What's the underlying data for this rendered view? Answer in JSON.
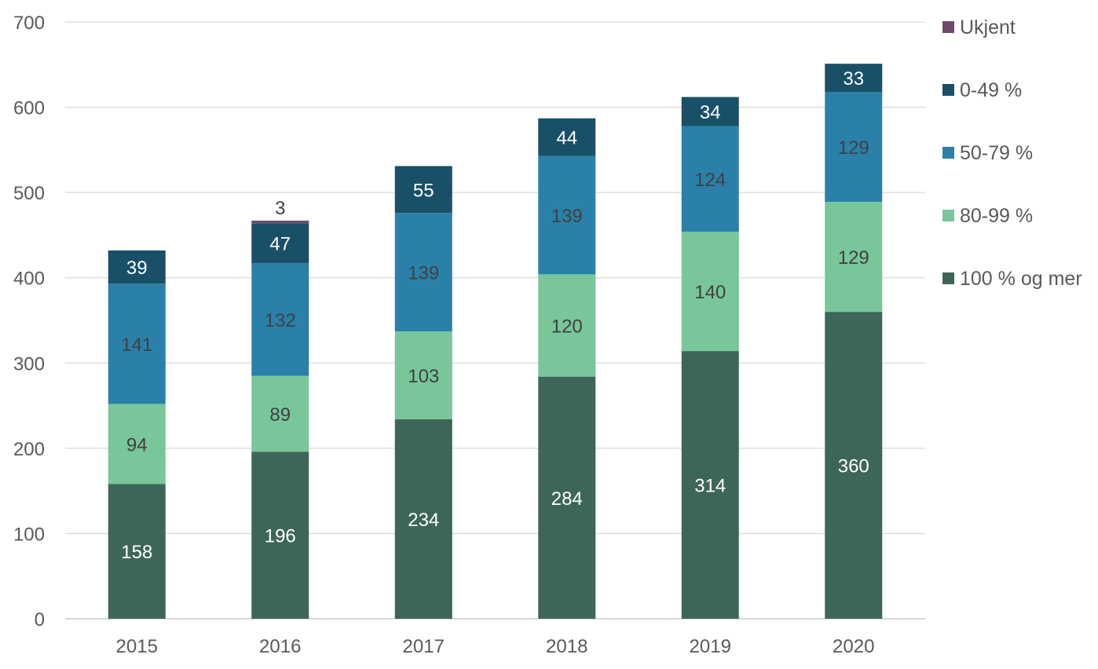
{
  "chart_data": {
    "type": "bar",
    "stacked": true,
    "categories": [
      "2015",
      "2016",
      "2017",
      "2018",
      "2019",
      "2020"
    ],
    "series": [
      {
        "name": "100 % og mer",
        "color": "#3d6658",
        "label_color": "#ffffff",
        "values": [
          158,
          196,
          234,
          284,
          314,
          360
        ]
      },
      {
        "name": "80-99 %",
        "color": "#78c69a",
        "label_color": "#404040",
        "values": [
          94,
          89,
          103,
          120,
          140,
          129
        ]
      },
      {
        "name": "50-79 %",
        "color": "#2a80a8",
        "label_color": "#404040",
        "values": [
          141,
          132,
          139,
          139,
          124,
          129
        ]
      },
      {
        "name": "0-49 %",
        "color": "#1a4f68",
        "label_color": "#ffffff",
        "values": [
          39,
          47,
          55,
          44,
          34,
          33
        ]
      },
      {
        "name": "Ukjent",
        "color": "#6f4a6e",
        "label_color": "#404040",
        "values": [
          null,
          3,
          null,
          null,
          null,
          null
        ]
      }
    ],
    "ylim": [
      0,
      700
    ],
    "yticks": [
      0,
      100,
      200,
      300,
      400,
      500,
      600,
      700
    ],
    "grid": true,
    "legend_placement": "right",
    "title": "",
    "xlabel": "",
    "ylabel": ""
  }
}
